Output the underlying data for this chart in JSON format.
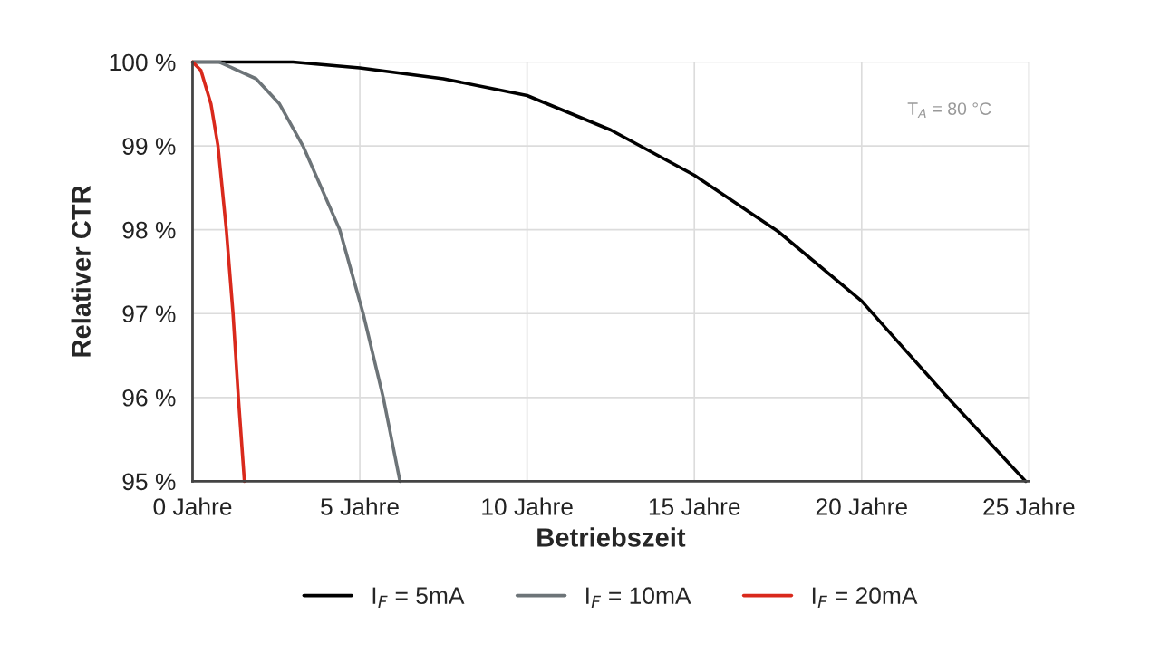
{
  "chart_data": {
    "type": "line",
    "xlabel": "Betriebszeit",
    "ylabel": "Relativer CTR",
    "xlim": [
      0,
      25
    ],
    "ylim": [
      95,
      100
    ],
    "xticks": [
      {
        "value": 0,
        "label": "0 Jahre"
      },
      {
        "value": 5,
        "label": "5 Jahre"
      },
      {
        "value": 10,
        "label": "10 Jahre"
      },
      {
        "value": 15,
        "label": "15 Jahre"
      },
      {
        "value": 20,
        "label": "20 Jahre"
      },
      {
        "value": 25,
        "label": "25 Jahre"
      }
    ],
    "yticks": [
      {
        "value": 95,
        "label": "95 %"
      },
      {
        "value": 96,
        "label": "96 %"
      },
      {
        "value": 97,
        "label": "97 %"
      },
      {
        "value": 98,
        "label": "98 %"
      },
      {
        "value": 99,
        "label": "99 %"
      },
      {
        "value": 100,
        "label": "100 %"
      }
    ],
    "grid": true,
    "legend": "bottom",
    "marker": "none",
    "line_style": "solid",
    "annotations": [
      "T$_{A}$ = 80 °C"
    ],
    "series": [
      {
        "name": "I$_{F}$ = 5mA",
        "color": "#000000",
        "x": [
          0,
          3,
          5,
          7.5,
          10,
          12.5,
          15,
          17.5,
          20,
          22.5,
          24.9
        ],
        "values": [
          100,
          100,
          99.93,
          99.8,
          99.6,
          99.19,
          98.65,
          97.98,
          97.15,
          96.03,
          95
        ]
      },
      {
        "name": "I$_{F}$ = 10mA",
        "color": "#6d7478",
        "x": [
          0,
          0.8,
          1.9,
          2.6,
          3.3,
          4.4,
          5.1,
          5.7,
          6.2
        ],
        "values": [
          100,
          100,
          99.8,
          99.5,
          99,
          98,
          97,
          96,
          95
        ]
      },
      {
        "name": "I$_{F}$ = 20mA",
        "color": "#d9291c",
        "x": [
          0,
          0.25,
          0.55,
          0.76,
          1.01,
          1.21,
          1.37,
          1.55
        ],
        "values": [
          100,
          99.9,
          99.5,
          99,
          98,
          97,
          96,
          95
        ]
      }
    ]
  }
}
